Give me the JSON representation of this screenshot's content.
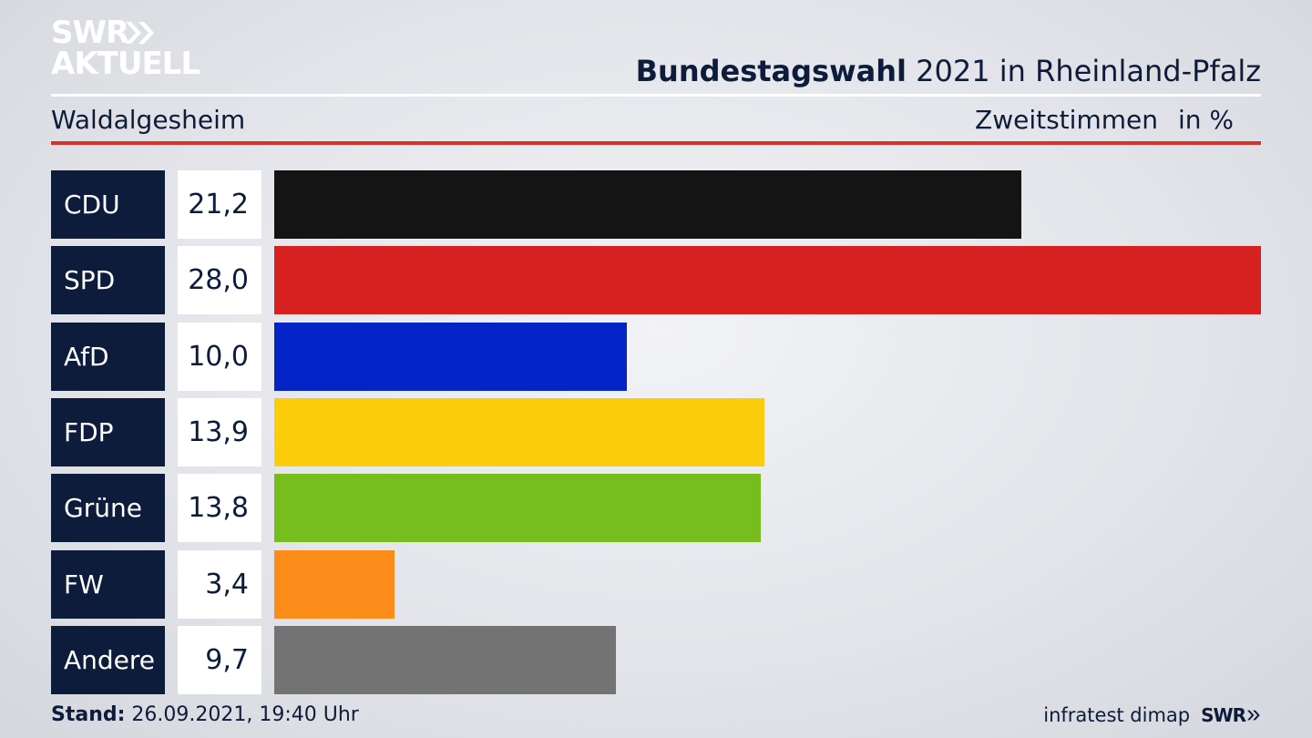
{
  "brand": {
    "logo_line1": "SWR",
    "logo_line2": "AKTUELL",
    "footer_source": "infratest dimap",
    "footer_logo": "SWR"
  },
  "header": {
    "title_bold": "Bundestagswahl",
    "title_rest": " 2021 in Rheinland-Pfalz",
    "region": "Waldalgesheim",
    "measure": "Zweitstimmen",
    "unit": "in %"
  },
  "footer": {
    "stand_label": "Stand:",
    "stand_value": " 26.09.2021, 19:40 Uhr"
  },
  "colors": {
    "navy": "#0d1c3a",
    "accent_red": "#d6332a"
  },
  "chart_data": {
    "type": "bar",
    "orientation": "horizontal",
    "categories": [
      "CDU",
      "SPD",
      "AfD",
      "FDP",
      "Grüne",
      "FW",
      "Andere"
    ],
    "values": [
      21.2,
      28.0,
      10.0,
      13.9,
      13.8,
      3.4,
      9.7
    ],
    "value_labels": [
      "21,2",
      "28,0",
      "10,0",
      "13,9",
      "13,8",
      "3,4",
      "9,7"
    ],
    "colors": [
      "#141414",
      "#d72121",
      "#0524c8",
      "#fccd0c",
      "#78bd1e",
      "#fb8c19",
      "#737373"
    ],
    "xlim": [
      0,
      28.0
    ],
    "grid": false
  }
}
